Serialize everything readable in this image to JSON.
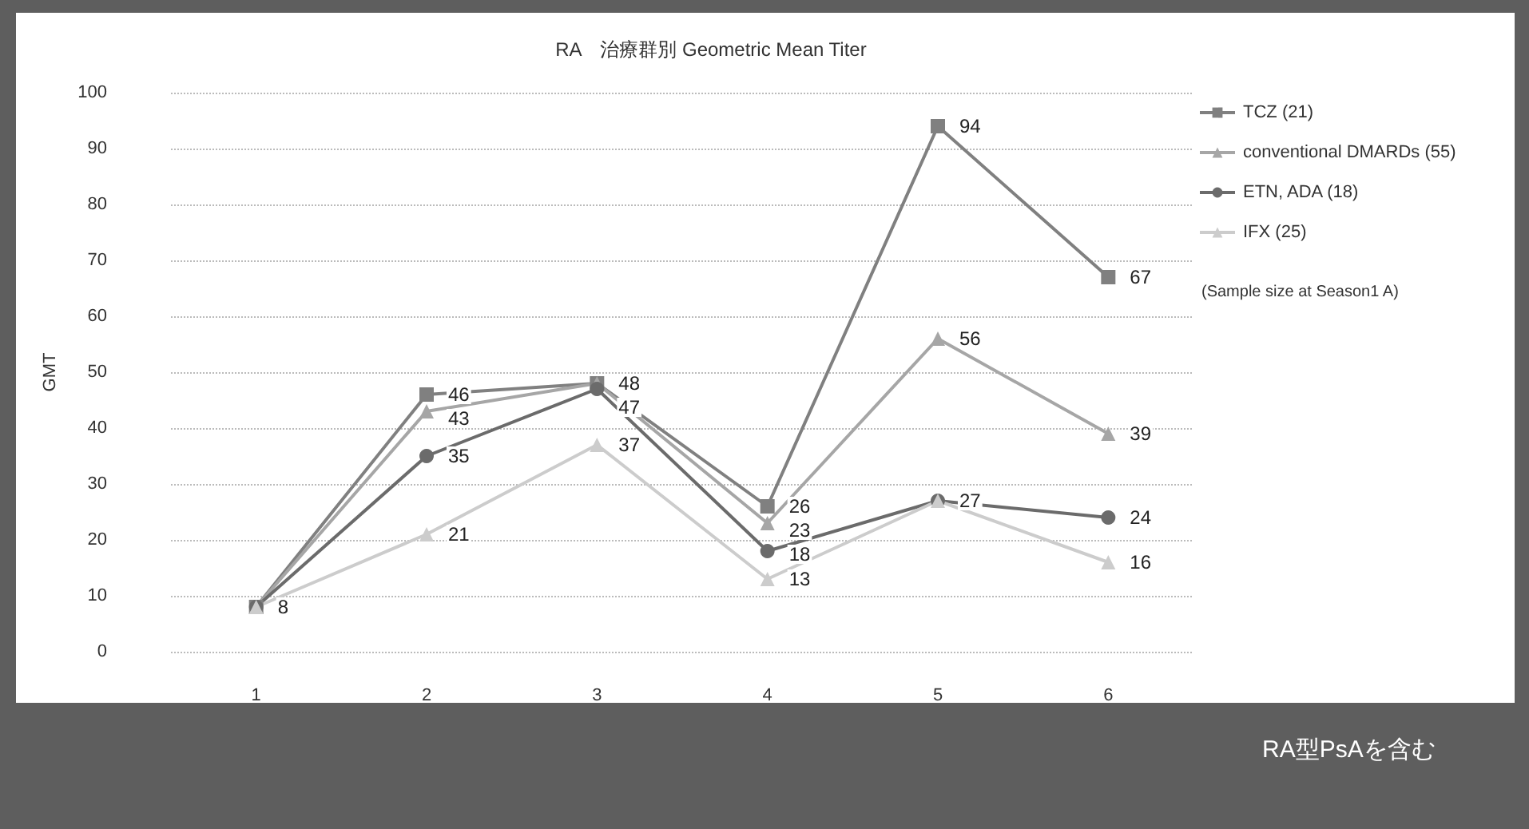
{
  "chart_data": {
    "type": "line",
    "title": "RA　治療群別 Geometric Mean Titer",
    "ylabel": "GMT",
    "categories": [
      "1",
      "2",
      "3",
      "4",
      "5",
      "6"
    ],
    "series": [
      {
        "name": "TCZ (21)",
        "color": "#808080",
        "marker": "square",
        "values": [
          8,
          46,
          48,
          26,
          94,
          67
        ],
        "value_labels": [
          "8",
          "46",
          "48",
          "26",
          "94",
          "67"
        ]
      },
      {
        "name": "conventional DMARDs (55)",
        "color": "#a6a6a6",
        "marker": "triangle",
        "values": [
          8,
          43,
          48,
          23,
          56,
          39
        ],
        "value_labels": [
          null,
          "43",
          null,
          "23",
          "56",
          "39"
        ]
      },
      {
        "name": "ETN, ADA (18)",
        "color": "#6b6b6b",
        "marker": "circle",
        "values": [
          8,
          35,
          47,
          18,
          27,
          24
        ],
        "value_labels": [
          null,
          "35",
          "47",
          "18",
          null,
          "24"
        ]
      },
      {
        "name": "IFX (25)",
        "color": "#cccccc",
        "marker": "triangle",
        "values": [
          8,
          21,
          37,
          13,
          27,
          16
        ],
        "value_labels": [
          null,
          "21",
          "37",
          "13",
          "27",
          "16"
        ]
      }
    ],
    "ylim": [
      0,
      100
    ],
    "yticks": [
      0,
      10,
      20,
      30,
      40,
      50,
      60,
      70,
      80,
      90,
      100
    ],
    "grid": "y",
    "legend": "right",
    "line_style": "solid",
    "annotations": [
      "(Sample size at Season1 A)",
      "RA型PsAを含む"
    ]
  }
}
